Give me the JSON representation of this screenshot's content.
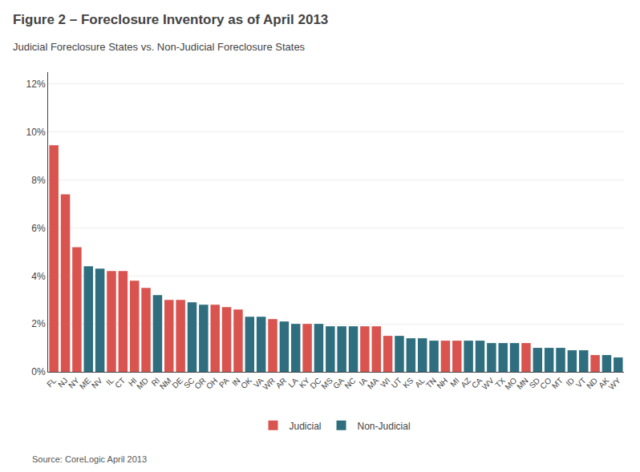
{
  "chart_data": {
    "type": "bar",
    "title": "Figure 2 – Foreclosure Inventory as of April 2013",
    "subtitle": "Judicial Foreclosure States vs. Non-Judicial Foreclosure States",
    "annotations": [
      "Source: CoreLogic April 2013"
    ],
    "categories": [
      "FL",
      "NJ",
      "NY",
      "ME",
      "NV",
      "IL",
      "CT",
      "HI",
      "MD",
      "RI",
      "NM",
      "DE",
      "SC",
      "OR",
      "OH",
      "PA",
      "IN",
      "OK",
      "VA",
      "WR",
      "AR",
      "LA",
      "KY",
      "DC",
      "MS",
      "GA",
      "NC",
      "IA",
      "MA",
      "WI",
      "UT",
      "KS",
      "AL",
      "TN",
      "NH",
      "MI",
      "AZ",
      "CA",
      "WV",
      "TX",
      "MO",
      "MN",
      "SD",
      "CO",
      "MT",
      "ID",
      "VT",
      "ND",
      "AK",
      "WY"
    ],
    "series": [
      {
        "name": "Judicial",
        "color": "#D9534F",
        "values": [
          0.0945,
          0.074,
          0.052,
          null,
          null,
          0.042,
          0.042,
          0.038,
          0.035,
          null,
          0.03,
          0.03,
          null,
          null,
          0.028,
          0.027,
          0.026,
          null,
          null,
          0.022,
          null,
          null,
          0.02,
          null,
          null,
          null,
          null,
          0.019,
          0.019,
          0.015,
          null,
          null,
          null,
          null,
          0.013,
          0.013,
          null,
          null,
          null,
          null,
          null,
          0.012,
          null,
          null,
          null,
          null,
          null,
          0.007,
          null,
          null
        ]
      },
      {
        "name": "Non-Judicial",
        "color": "#2E6E7E",
        "values": [
          null,
          null,
          null,
          0.044,
          0.043,
          null,
          null,
          null,
          null,
          0.032,
          null,
          null,
          0.029,
          0.028,
          null,
          null,
          null,
          0.023,
          0.023,
          null,
          0.021,
          0.02,
          null,
          0.02,
          0.019,
          0.019,
          0.019,
          null,
          null,
          null,
          0.015,
          0.014,
          0.014,
          0.013,
          null,
          null,
          0.013,
          0.013,
          0.012,
          0.012,
          0.012,
          null,
          0.01,
          0.01,
          0.01,
          0.009,
          0.009,
          null,
          0.007,
          0.006
        ]
      }
    ],
    "ylim": [
      0,
      0.125
    ],
    "yticks": [
      {
        "value": 0,
        "label": "0%"
      },
      {
        "value": 0.02,
        "label": "2%"
      },
      {
        "value": 0.04,
        "label": "4%"
      },
      {
        "value": 0.06,
        "label": "6%"
      },
      {
        "value": 0.08,
        "label": "8%"
      },
      {
        "value": 0.1,
        "label": "10%"
      },
      {
        "value": 0.12,
        "label": "12%"
      }
    ],
    "grid": true,
    "legend": "bottom"
  }
}
